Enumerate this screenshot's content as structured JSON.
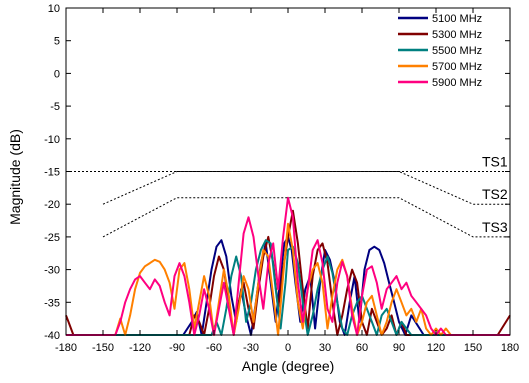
{
  "chart_data": {
    "type": "line",
    "title": "",
    "xlabel": "Angle (degree)",
    "ylabel": "Magnitude (dB)",
    "xlim": [
      -180,
      180
    ],
    "ylim": [
      -40,
      10
    ],
    "xticks": [
      -180,
      -150,
      -120,
      -90,
      -60,
      -30,
      0,
      30,
      60,
      90,
      120,
      150,
      180
    ],
    "yticks": [
      10,
      5,
      0,
      -5,
      -10,
      -15,
      -20,
      -25,
      -30,
      -35,
      -40
    ],
    "grid": false,
    "legend_position": "top-right",
    "series": [
      {
        "name": "5100 MHz",
        "color": "#000080",
        "x": [
          -180,
          -150,
          -130,
          -110,
          -95,
          -85,
          -78,
          -74,
          -70,
          -66,
          -62,
          -58,
          -54,
          -50,
          -46,
          -42,
          -38,
          -34,
          -30,
          -26,
          -22,
          -18,
          -14,
          -10,
          -6,
          -3,
          0,
          3,
          6,
          10,
          14,
          18,
          22,
          26,
          30,
          34,
          38,
          42,
          46,
          50,
          54,
          58,
          62,
          66,
          70,
          74,
          78,
          82,
          86,
          90,
          95,
          100,
          110,
          120,
          130,
          150,
          180
        ],
        "y": [
          -40,
          -40,
          -40,
          -40,
          -40,
          -40,
          -38,
          -36.5,
          -40,
          -35,
          -30,
          -26.5,
          -25.5,
          -28,
          -34,
          -38,
          -33,
          -37,
          -40,
          -35,
          -29,
          -26,
          -32,
          -38,
          -31,
          -26,
          -25,
          -27,
          -32,
          -38,
          -33,
          -31,
          -39,
          -32,
          -27,
          -28.5,
          -32,
          -38,
          -40,
          -35,
          -31,
          -38,
          -30,
          -27,
          -26.5,
          -27,
          -29,
          -32,
          -35,
          -38,
          -40,
          -37,
          -40,
          -40,
          -40,
          -40,
          -40
        ]
      },
      {
        "name": "5300 MHz",
        "color": "#800000",
        "x": [
          -180,
          -178,
          -174,
          -170,
          -160,
          -150,
          -130,
          -110,
          -90,
          -80,
          -76,
          -72,
          -68,
          -64,
          -60,
          -56,
          -52,
          -48,
          -44,
          -40,
          -36,
          -32,
          -28,
          -24,
          -20,
          -16,
          -12,
          -8,
          -4,
          0,
          4,
          8,
          12,
          16,
          20,
          24,
          28,
          32,
          36,
          40,
          44,
          48,
          52,
          56,
          60,
          64,
          68,
          72,
          76,
          80,
          84,
          88,
          92,
          96,
          100,
          110,
          120,
          130,
          150,
          170,
          180
        ],
        "y": [
          -37,
          -38,
          -40,
          -40,
          -40,
          -40,
          -40,
          -40,
          -40,
          -40,
          -37,
          -38,
          -40,
          -36,
          -31,
          -28,
          -30,
          -35,
          -40,
          -35,
          -32,
          -36,
          -39,
          -33,
          -28,
          -25,
          -29,
          -36,
          -30,
          -25,
          -21,
          -26,
          -33,
          -39,
          -31,
          -27,
          -26,
          -29,
          -35,
          -40,
          -37,
          -33,
          -30,
          -32,
          -38,
          -40,
          -36,
          -38,
          -40,
          -39,
          -37,
          -40,
          -38,
          -40,
          -40,
          -40,
          -40,
          -40,
          -40,
          -40,
          -37
        ]
      },
      {
        "name": "5500 MHz",
        "color": "#008080",
        "x": [
          -180,
          -150,
          -120,
          -100,
          -80,
          -70,
          -62,
          -58,
          -54,
          -50,
          -46,
          -42,
          -38,
          -34,
          -30,
          -26,
          -22,
          -18,
          -14,
          -10,
          -6,
          -2,
          0,
          4,
          8,
          12,
          16,
          20,
          24,
          28,
          32,
          36,
          40,
          44,
          48,
          52,
          56,
          60,
          64,
          68,
          72,
          76,
          80,
          84,
          88,
          92,
          96,
          100,
          105,
          110,
          120,
          150,
          180
        ],
        "y": [
          -40,
          -40,
          -40,
          -40,
          -40,
          -40,
          -40,
          -38,
          -40,
          -36,
          -31,
          -28,
          -31,
          -38,
          -35,
          -30,
          -27,
          -25.5,
          -26,
          -33,
          -39,
          -32,
          -27,
          -26.5,
          -29,
          -35,
          -40,
          -37,
          -33,
          -30,
          -28,
          -30.5,
          -35,
          -39,
          -40,
          -37,
          -35,
          -34,
          -36,
          -38,
          -40,
          -37,
          -36,
          -38,
          -40,
          -38,
          -39,
          -40,
          -40,
          -40,
          -40,
          -40,
          -40
        ]
      },
      {
        "name": "5700 MHz",
        "color": "#ff8000",
        "x": [
          -180,
          -150,
          -140,
          -136,
          -132,
          -128,
          -124,
          -120,
          -116,
          -112,
          -108,
          -104,
          -100,
          -96,
          -92,
          -88,
          -84,
          -80,
          -76,
          -72,
          -68,
          -64,
          -60,
          -56,
          -52,
          -48,
          -44,
          -40,
          -36,
          -32,
          -28,
          -24,
          -20,
          -16,
          -12,
          -8,
          -4,
          0,
          4,
          8,
          12,
          16,
          20,
          24,
          28,
          32,
          36,
          40,
          44,
          48,
          52,
          56,
          60,
          64,
          68,
          72,
          76,
          80,
          84,
          88,
          92,
          96,
          100,
          104,
          108,
          112,
          116,
          120,
          124,
          128,
          132,
          140,
          150,
          180
        ],
        "y": [
          -40,
          -40,
          -40,
          -37.5,
          -40,
          -37,
          -33,
          -30.5,
          -29.5,
          -29,
          -28.5,
          -28.8,
          -30,
          -32,
          -36,
          -30,
          -29,
          -33,
          -39,
          -35,
          -31,
          -34,
          -40,
          -35,
          -30,
          -34,
          -40,
          -36,
          -31,
          -33,
          -38,
          -32,
          -27,
          -28,
          -34,
          -40,
          -31,
          -23,
          -27,
          -35,
          -39,
          -33,
          -30,
          -29,
          -32,
          -39,
          -34,
          -30,
          -28.5,
          -31,
          -36,
          -40,
          -38,
          -35,
          -34,
          -37,
          -40,
          -38,
          -35,
          -33,
          -35,
          -37,
          -36,
          -38,
          -36,
          -39,
          -40,
          -39,
          -40,
          -39,
          -40,
          -40,
          -40,
          -40
        ]
      },
      {
        "name": "5900 MHz",
        "color": "#ff0080",
        "x": [
          -180,
          -150,
          -140,
          -136,
          -132,
          -128,
          -124,
          -120,
          -116,
          -112,
          -108,
          -104,
          -100,
          -96,
          -92,
          -88,
          -84,
          -80,
          -76,
          -72,
          -68,
          -64,
          -60,
          -56,
          -52,
          -48,
          -44,
          -40,
          -36,
          -32,
          -28,
          -24,
          -20,
          -16,
          -12,
          -8,
          -4,
          0,
          4,
          8,
          12,
          16,
          20,
          24,
          28,
          32,
          36,
          40,
          44,
          48,
          52,
          56,
          60,
          64,
          68,
          72,
          76,
          80,
          84,
          88,
          92,
          96,
          100,
          104,
          108,
          112,
          116,
          120,
          124,
          128,
          132,
          140,
          150,
          180
        ],
        "y": [
          -40,
          -40,
          -40,
          -38,
          -35,
          -33,
          -31.5,
          -31,
          -32,
          -33,
          -31.5,
          -32.5,
          -35,
          -37,
          -31,
          -29,
          -31,
          -35,
          -40,
          -37,
          -33,
          -36,
          -40,
          -36,
          -32,
          -36,
          -40,
          -32,
          -24.5,
          -22,
          -25,
          -31,
          -36,
          -29,
          -26,
          -33,
          -25,
          -19,
          -22,
          -32,
          -38,
          -33,
          -27,
          -25.5,
          -29,
          -36,
          -38,
          -32,
          -28.8,
          -31,
          -37,
          -40,
          -34,
          -30,
          -29.5,
          -32,
          -36,
          -33,
          -32,
          -31,
          -33,
          -32,
          -34,
          -35,
          -36,
          -37,
          -39,
          -40,
          -39,
          -40,
          -40,
          -40,
          -40,
          -40
        ]
      }
    ],
    "annotations": [
      {
        "text": "TS1",
        "x": [
          -90,
          90
        ],
        "y_value": -15,
        "points": [
          [
            -180,
            -15
          ],
          [
            180,
            -15
          ]
        ]
      },
      {
        "text": "TS2",
        "points": [
          [
            -150,
            -20
          ],
          [
            -90,
            -15
          ],
          [
            90,
            -15
          ],
          [
            150,
            -20
          ],
          [
            180,
            -20
          ]
        ]
      },
      {
        "text": "TS3",
        "points": [
          [
            -150,
            -25
          ],
          [
            -90,
            -19
          ],
          [
            90,
            -19
          ],
          [
            150,
            -25
          ],
          [
            180,
            -25
          ]
        ]
      }
    ]
  }
}
